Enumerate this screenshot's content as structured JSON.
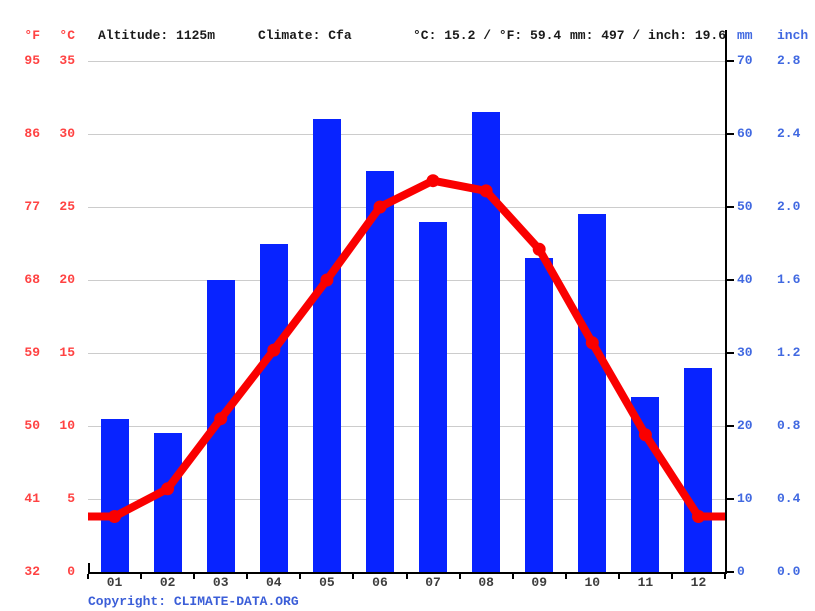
{
  "header": {
    "f_label": "°F",
    "c_label": "°C",
    "altitude": "Altitude: 1125m",
    "climate": "Climate: Cfa",
    "temp_summary": "°C: 15.2 / °F: 59.4",
    "precip_summary": "mm: 497 / inch: 19.6",
    "mm_label": "mm",
    "inch_label": "inch"
  },
  "footer": {
    "copyright_label": "Copyright: ",
    "copyright_link": "CLIMATE-DATA.ORG"
  },
  "colors": {
    "bar": "#0823ff",
    "line": "#fa0000",
    "left_axis_text": "#ff4242",
    "right_axis_text": "#4169e1",
    "gridline": "#cccccc",
    "axis": "#000000",
    "month_label": "#3d3d3d",
    "header_text": "#1a1a1a",
    "copyright": "#3b5ed8"
  },
  "chart_data": {
    "type": "bar+line",
    "title": "Climate graph (climogram): monthly precipitation bars with mean temperature line",
    "categories": [
      "01",
      "02",
      "03",
      "04",
      "05",
      "06",
      "07",
      "08",
      "09",
      "10",
      "11",
      "12"
    ],
    "series": [
      {
        "name": "precipitation",
        "type": "bar",
        "unit": "mm",
        "color": "#0823ff",
        "values": [
          21,
          19,
          40,
          45,
          62,
          55,
          48,
          63,
          43,
          49,
          24,
          28
        ]
      },
      {
        "name": "temperature",
        "type": "line",
        "unit": "°C",
        "color": "#fa0000",
        "values": [
          3.8,
          5.7,
          10.5,
          15.2,
          20.0,
          25.0,
          26.8,
          26.1,
          22.1,
          15.7,
          9.4,
          3.8
        ],
        "extends_to_plot_edges": true
      }
    ],
    "axes": {
      "left_fahrenheit": {
        "label": "°F",
        "ticks": [
          "95",
          "86",
          "77",
          "68",
          "59",
          "50",
          "41",
          "32"
        ]
      },
      "left_celsius": {
        "label": "°C",
        "ticks": [
          "35",
          "30",
          "25",
          "20",
          "15",
          "10",
          "5",
          "0"
        ],
        "range": [
          0,
          35
        ]
      },
      "right_mm": {
        "label": "mm",
        "ticks": [
          "70",
          "60",
          "50",
          "40",
          "30",
          "20",
          "10",
          "0"
        ],
        "range": [
          0,
          70
        ]
      },
      "right_inch": {
        "label": "inch",
        "ticks": [
          "2.8",
          "2.4",
          "2.0",
          "1.6",
          "1.2",
          "0.8",
          "0.4",
          "0.0"
        ]
      }
    },
    "grid": true,
    "legend": "none",
    "annual_mean_temp_c": 15.2,
    "annual_precip_mm": 497
  }
}
